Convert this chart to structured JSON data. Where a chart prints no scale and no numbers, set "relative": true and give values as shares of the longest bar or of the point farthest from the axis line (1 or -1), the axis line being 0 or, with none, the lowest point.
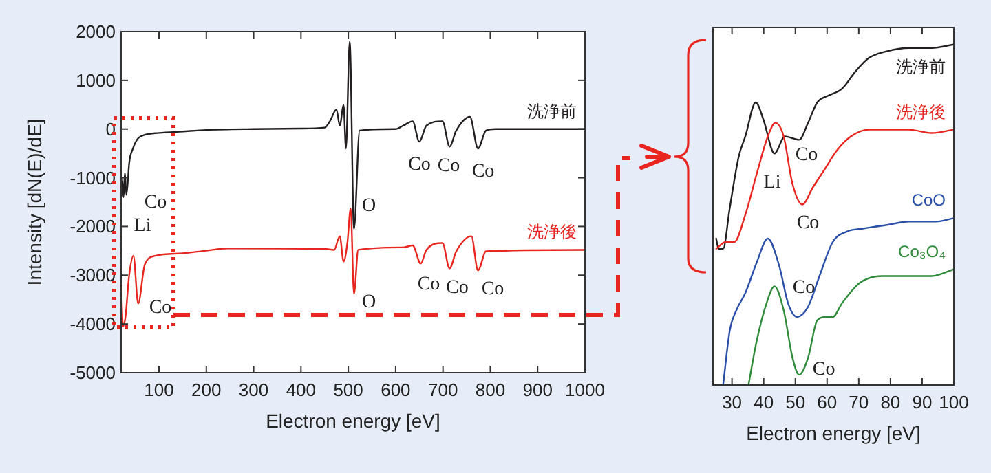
{
  "chart_data": [
    {
      "type": "line",
      "xlabel": "Electron energy [eV]",
      "ylabel": "Intensity [dN(E)/dE]",
      "xlim": [
        20,
        1000
      ],
      "ylim": [
        -5000,
        2000
      ],
      "xticks": [
        100,
        200,
        300,
        400,
        500,
        600,
        700,
        800,
        900,
        1000
      ],
      "yticks": [
        -5000,
        -4000,
        -3000,
        -2000,
        -1000,
        0,
        1000,
        2000
      ],
      "grid": false,
      "series": [
        {
          "name": "洗浄前",
          "color": "#231f20",
          "x": [
            20,
            22,
            25,
            28,
            31,
            34,
            37,
            45,
            55,
            70,
            100,
            150,
            200,
            300,
            400,
            450,
            461,
            475,
            482,
            490,
            495,
            503,
            512,
            524,
            600,
            616,
            636,
            650,
            665,
            699,
            714,
            728,
            757,
            774,
            791,
            811,
            1000
          ],
          "values": [
            -2500,
            -1000,
            -1400,
            -900,
            -1350,
            -1100,
            -700,
            -400,
            -200,
            -120,
            -80,
            -50,
            -20,
            0,
            10,
            30,
            160,
            400,
            70,
            490,
            -400,
            1800,
            -2050,
            -30,
            0,
            70,
            160,
            -260,
            70,
            160,
            -360,
            -30,
            250,
            -400,
            -30,
            0,
            0
          ]
        },
        {
          "name": "洗浄後",
          "color": "#e8251f",
          "x": [
            20,
            24,
            29,
            37,
            46,
            56,
            70,
            93,
            150,
            197,
            245,
            450,
            470,
            482,
            490,
            498,
            505,
            512,
            521,
            616,
            636,
            653,
            665,
            699,
            714,
            728,
            760,
            774,
            791,
            1000
          ],
          "values": [
            -3200,
            -4050,
            -3870,
            -3000,
            -2600,
            -3580,
            -2780,
            -2600,
            -2550,
            -2500,
            -2450,
            -2460,
            -2480,
            -2200,
            -2720,
            -2340,
            -1630,
            -3380,
            -2480,
            -2430,
            -2390,
            -2760,
            -2480,
            -2340,
            -2860,
            -2510,
            -2200,
            -2900,
            -2510,
            -2480
          ]
        }
      ],
      "annotations": [
        "Co",
        "Li",
        "Co",
        "O",
        "O",
        "Co",
        "Co",
        "Co",
        "Co",
        "Co",
        "Co"
      ]
    },
    {
      "type": "line",
      "xlabel": "Electron energy [eV]",
      "relative": true,
      "xlim": [
        24,
        100
      ],
      "xticks": [
        30,
        40,
        50,
        60,
        70,
        80,
        90,
        100
      ],
      "grid": false,
      "tick_labels": "x",
      "series": [
        {
          "name": "洗浄前",
          "color": "#231f20",
          "x": [
            25,
            25.8,
            27.2,
            29.3,
            32.1,
            34.2,
            37.5,
            39.9,
            43.4,
            46.7,
            51.2,
            54,
            56.9,
            60.4,
            64.7,
            68.9,
            73.1,
            78.8,
            85.9,
            93,
            100
          ],
          "values": [
            0.43,
            0.4,
            0.4,
            0.52,
            0.67,
            0.73,
            0.83,
            0.78,
            0.68,
            0.73,
            0.72,
            0.77,
            0.83,
            0.85,
            0.87,
            0.92,
            0.96,
            0.98,
            0.99,
            0.99,
            1
          ]
        },
        {
          "name": "洗浄後",
          "color": "#e8251f",
          "x": [
            25,
            28,
            30.7,
            34.2,
            37.8,
            41.3,
            43.7,
            46.3,
            49.1,
            52.2,
            55.5,
            59,
            63.2,
            67.5,
            73.1,
            78.8,
            85.9,
            93,
            100
          ],
          "values": [
            0.4,
            0.42,
            0.42,
            0.5,
            0.62,
            0.73,
            0.77,
            0.73,
            0.59,
            0.53,
            0.58,
            0.63,
            0.69,
            0.73,
            0.75,
            0.75,
            0.75,
            0.74,
            0.75
          ]
        },
        {
          "name": "CoO",
          "color": "#2a4fa8",
          "x": [
            27.2,
            29.3,
            31.4,
            34.2,
            37.8,
            41.3,
            44.9,
            47.7,
            50.5,
            54,
            57.6,
            61.8,
            66.1,
            71.7,
            78.8,
            85.9,
            94.4,
            100
          ],
          "values": [
            0,
            0.16,
            0.22,
            0.27,
            0.36,
            0.43,
            0.35,
            0.24,
            0.2,
            0.23,
            0.32,
            0.42,
            0.45,
            0.46,
            0.47,
            0.48,
            0.48,
            0.49
          ]
        },
        {
          "name": "Co₃O₄",
          "color": "#2e8b3a",
          "x": [
            35.2,
            37.8,
            40.9,
            43.4,
            46.3,
            49.1,
            51.2,
            54,
            56.9,
            59.7,
            61.8,
            64.7,
            70.3,
            77.4,
            85.9,
            93,
            100
          ],
          "values": [
            0,
            0.13,
            0.24,
            0.29,
            0.22,
            0.08,
            0.03,
            0.08,
            0.19,
            0.2,
            0.2,
            0.24,
            0.3,
            0.32,
            0.32,
            0.32,
            0.34
          ]
        }
      ],
      "annotations": [
        "Co",
        "Li",
        "Co",
        "Co",
        "Co"
      ]
    }
  ]
}
